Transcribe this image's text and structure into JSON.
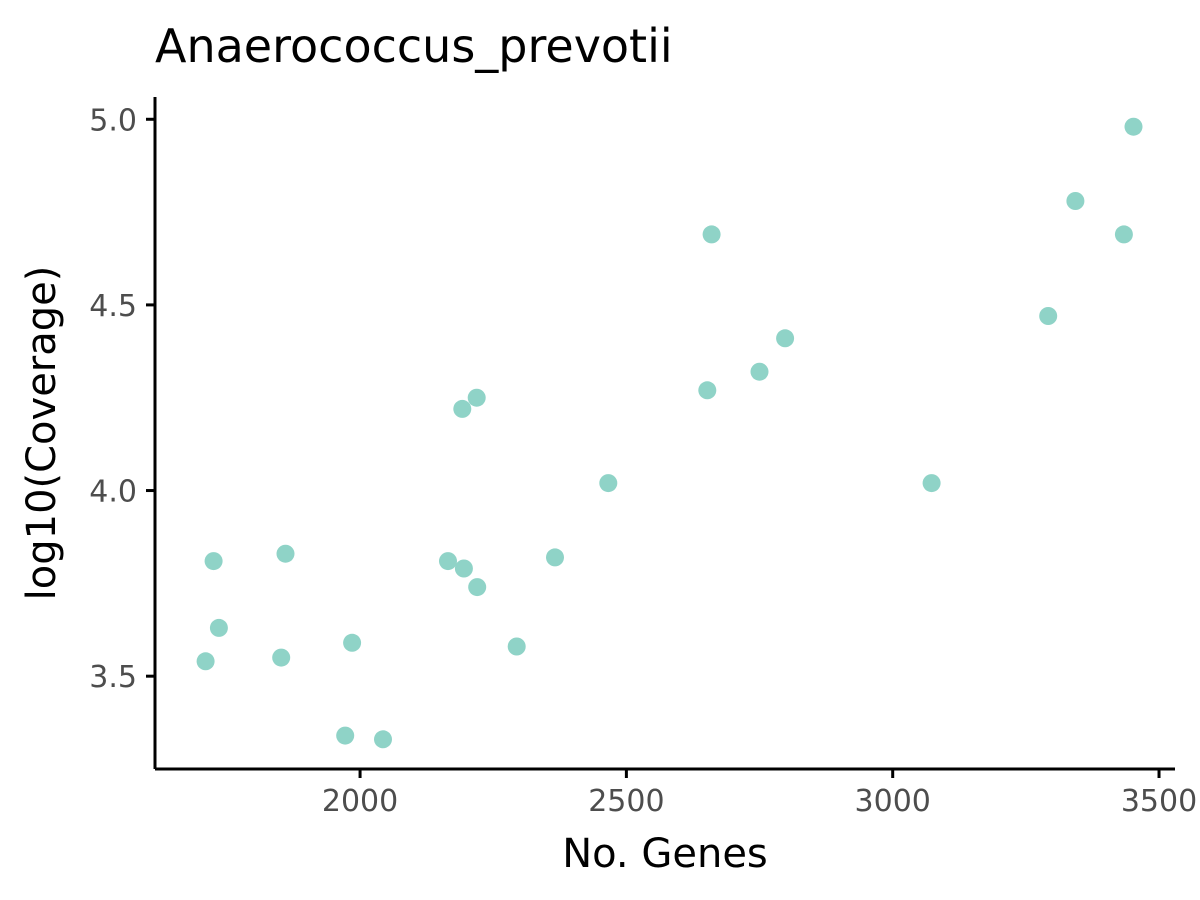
{
  "chart_data": {
    "type": "scatter",
    "title": "Anaerococcus_prevotii",
    "xlabel": "No. Genes",
    "ylabel": "log10(Coverage)",
    "xlim": [
      1615,
      3530
    ],
    "ylim": [
      3.25,
      5.06
    ],
    "xticks": [
      2000,
      2500,
      3000,
      3500
    ],
    "yticks": [
      3.5,
      4.0,
      4.5,
      5.0
    ],
    "xtick_labels": [
      "2000",
      "2500",
      "3000",
      "3500"
    ],
    "ytick_labels": [
      "3.5",
      "4.0",
      "4.5",
      "5.0"
    ],
    "grid": false,
    "legend": "none",
    "point_color": "#8fd3c7",
    "points": [
      {
        "x": 1710,
        "y": 3.54
      },
      {
        "x": 1725,
        "y": 3.81
      },
      {
        "x": 1735,
        "y": 3.63
      },
      {
        "x": 1852,
        "y": 3.55
      },
      {
        "x": 1860,
        "y": 3.83
      },
      {
        "x": 1972,
        "y": 3.34
      },
      {
        "x": 1985,
        "y": 3.59
      },
      {
        "x": 2043,
        "y": 3.33
      },
      {
        "x": 2165,
        "y": 3.81
      },
      {
        "x": 2192,
        "y": 4.22
      },
      {
        "x": 2195,
        "y": 3.79
      },
      {
        "x": 2219,
        "y": 4.25
      },
      {
        "x": 2220,
        "y": 3.74
      },
      {
        "x": 2294,
        "y": 3.58
      },
      {
        "x": 2366,
        "y": 3.82
      },
      {
        "x": 2466,
        "y": 4.02
      },
      {
        "x": 2652,
        "y": 4.27
      },
      {
        "x": 2660,
        "y": 4.69
      },
      {
        "x": 2750,
        "y": 4.32
      },
      {
        "x": 2798,
        "y": 4.41
      },
      {
        "x": 3073,
        "y": 4.02
      },
      {
        "x": 3292,
        "y": 4.47
      },
      {
        "x": 3343,
        "y": 4.78
      },
      {
        "x": 3434,
        "y": 4.69
      },
      {
        "x": 3452,
        "y": 4.98
      }
    ]
  }
}
